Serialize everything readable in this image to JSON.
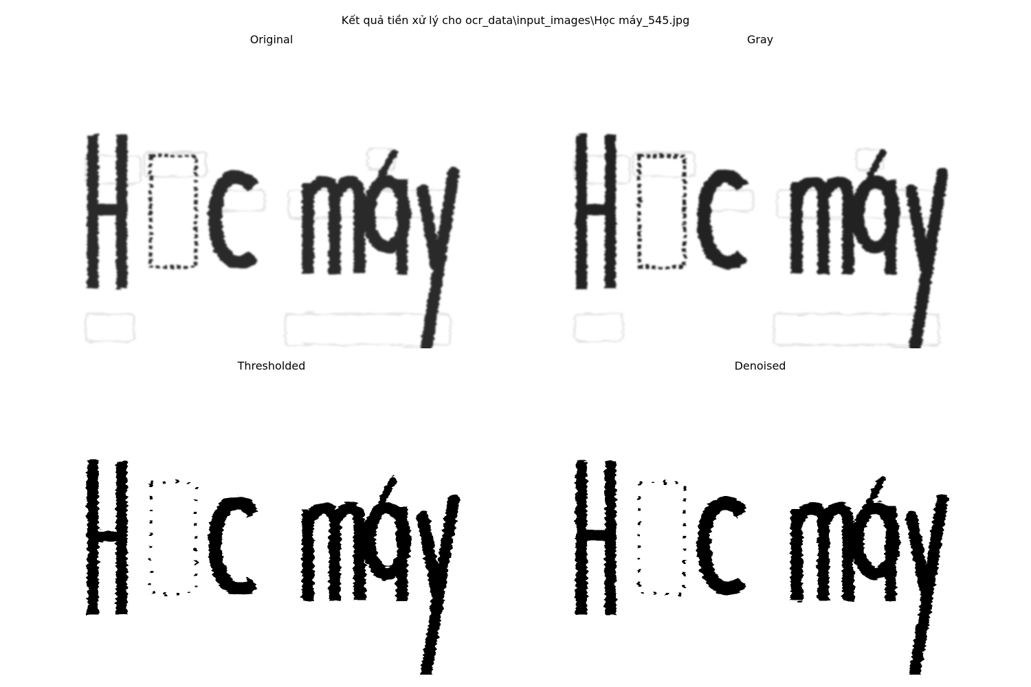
{
  "figure": {
    "title": "Kết quả tiền xử lý cho ocr_data\\input_images\\Học máy_545.jpg"
  },
  "panels": [
    {
      "title": "Original",
      "style": "soft",
      "ink": "#2a2a2a"
    },
    {
      "title": "Gray",
      "style": "soft",
      "ink": "#222222"
    },
    {
      "title": "Thresholded",
      "style": "binary",
      "ink": "#000000"
    },
    {
      "title": "Denoised",
      "style": "binary",
      "ink": "#000000"
    }
  ],
  "word_image": {
    "glyphs": [
      "H",
      "□",
      "c",
      "m",
      "á",
      "y"
    ]
  }
}
